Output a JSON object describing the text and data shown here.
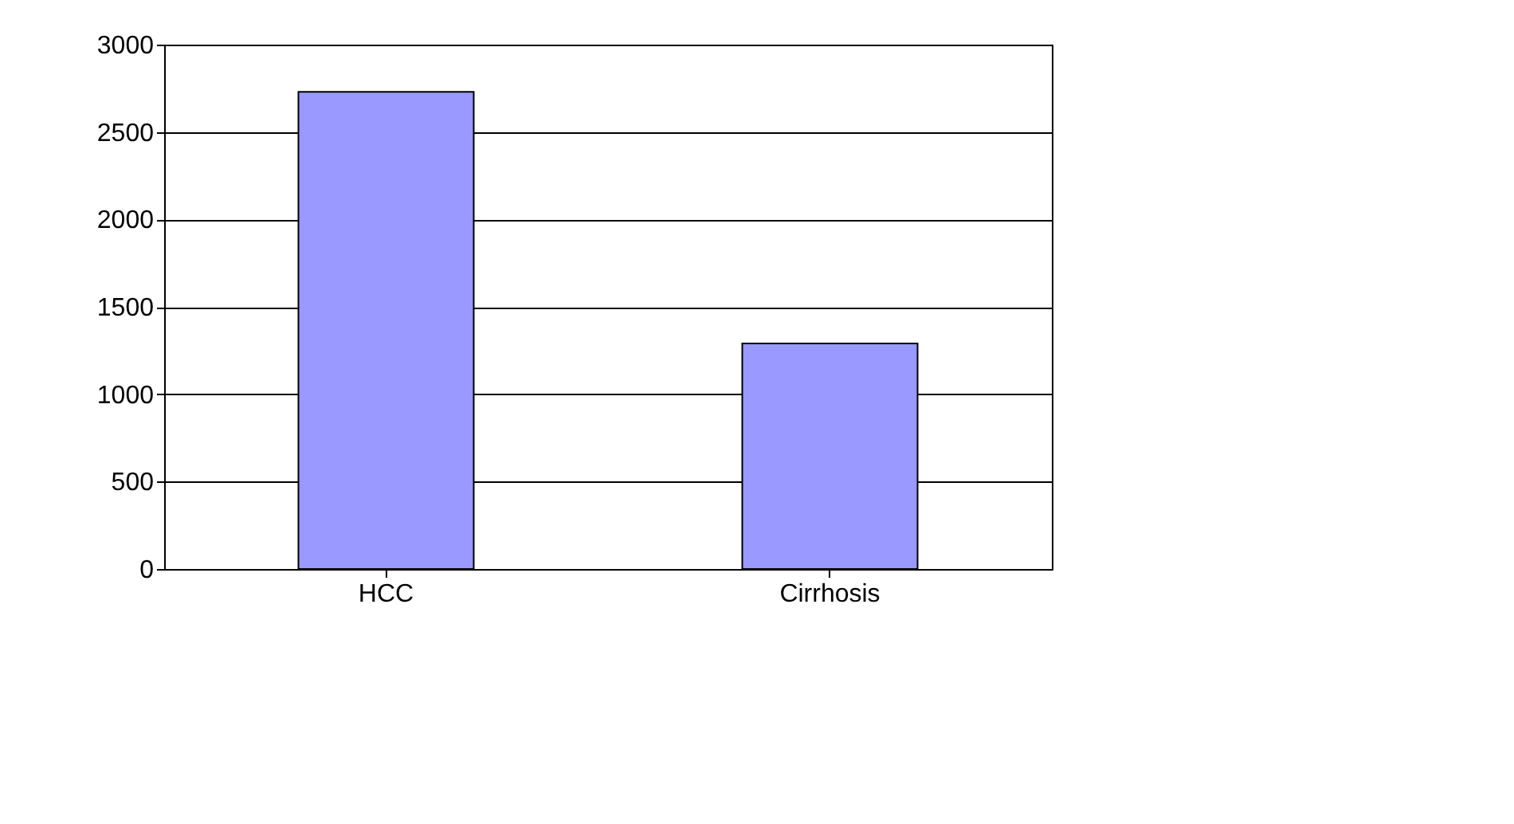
{
  "chart_data": {
    "type": "bar",
    "categories": [
      "HCC",
      "Cirrhosis"
    ],
    "values": [
      2730,
      1290
    ],
    "color": "#9999ff",
    "ylim": [
      0,
      3000
    ],
    "yticks": [
      0,
      500,
      1000,
      1500,
      2000,
      2500,
      3000
    ],
    "grid": "y"
  }
}
